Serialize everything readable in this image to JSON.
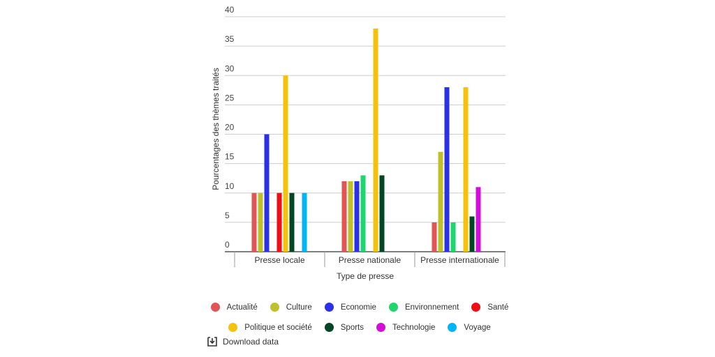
{
  "chart_data": {
    "type": "bar",
    "title": "",
    "xlabel": "Type de presse",
    "ylabel": "Pourcentages des thèmes traités",
    "ylim": [
      0,
      40
    ],
    "yticks": [
      "0",
      "5",
      "10",
      "15",
      "20",
      "25",
      "30",
      "35",
      "40"
    ],
    "grid": true,
    "legend_position": "bottom",
    "categories": [
      "Presse locale",
      "Presse nationale",
      "Presse internationale"
    ],
    "series": [
      {
        "name": "Actualité",
        "color": "#e05555",
        "values": [
          10,
          12,
          5
        ]
      },
      {
        "name": "Culture",
        "color": "#c0c02a",
        "values": [
          10,
          12,
          17
        ]
      },
      {
        "name": "Economie",
        "color": "#2b31e8",
        "values": [
          20,
          12,
          28
        ]
      },
      {
        "name": "Environnement",
        "color": "#1ed66e",
        "values": [
          0,
          13,
          5
        ]
      },
      {
        "name": "Santé",
        "color": "#f00d14",
        "values": [
          10,
          0,
          0
        ]
      },
      {
        "name": "Politique et société",
        "color": "#f5c20b",
        "values": [
          30,
          38,
          28
        ]
      },
      {
        "name": "Sports",
        "color": "#034626",
        "values": [
          10,
          13,
          6
        ]
      },
      {
        "name": "Technologie",
        "color": "#d20fd8",
        "values": [
          0,
          0,
          11
        ]
      },
      {
        "name": "Voyage",
        "color": "#00b6f7",
        "values": [
          10,
          0,
          0
        ]
      }
    ]
  },
  "download": {
    "label": "Download data",
    "icon": "download-icon"
  }
}
